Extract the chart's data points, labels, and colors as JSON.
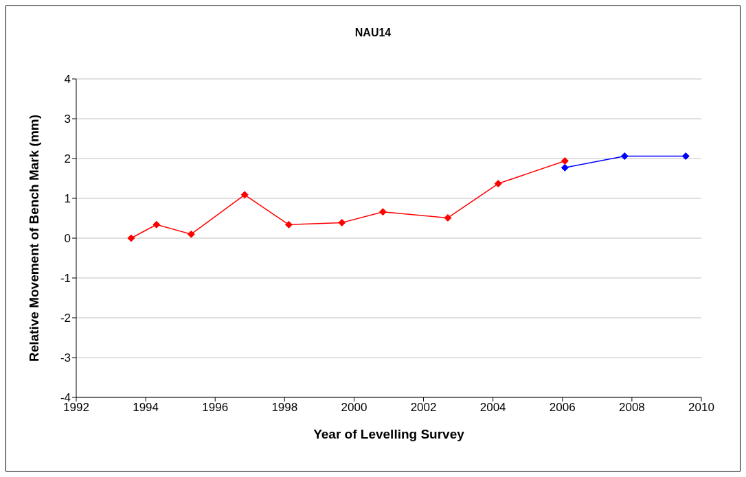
{
  "chart_data": {
    "type": "line",
    "title": "NAU14",
    "xlabel": "Year of Levelling Survey",
    "ylabel": "Relative Movement of Bench Mark (mm)",
    "series": [
      {
        "color": "#ff0000",
        "x": [
          1993.58,
          1994.31,
          1995.31,
          1996.85,
          1998.12,
          1999.65,
          2000.83,
          2002.7,
          2004.15,
          2006.07
        ],
        "values": [
          0,
          0.34,
          0.1,
          1.09,
          0.34,
          0.39,
          0.66,
          0.51,
          1.37,
          1.94
        ]
      },
      {
        "color": "#0000ff",
        "x": [
          2006.07,
          2007.79,
          2009.55
        ],
        "values": [
          1.77,
          2.06,
          2.06
        ]
      }
    ],
    "xlim": [
      1992,
      2010
    ],
    "xticks": [
      1992,
      1994,
      1996,
      1998,
      2000,
      2002,
      2004,
      2006,
      2008,
      2010
    ],
    "ylim": [
      -4,
      4
    ],
    "yticks": [
      -4,
      -3,
      -2,
      -1,
      0,
      1,
      2,
      3,
      4
    ],
    "grid": "y",
    "marker": "diamond",
    "line_style": "solid"
  }
}
